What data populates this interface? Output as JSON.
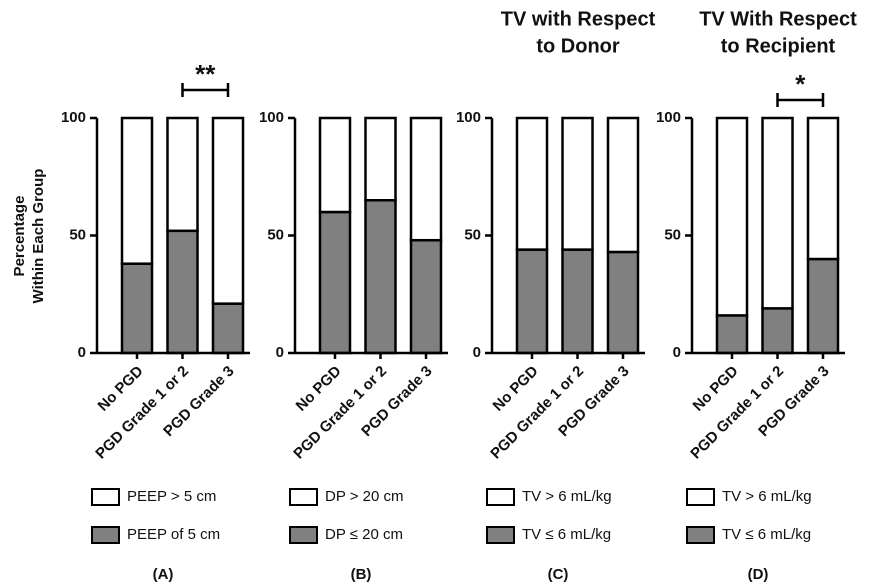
{
  "chart_data": [
    {
      "type": "stacked_bar",
      "y_label": [
        "Percentage",
        "Within Each Group"
      ],
      "panel_label": "(A)",
      "categories": [
        "No PGD",
        "PGD Grade 1 or 2",
        "PGD Grade 3"
      ],
      "series": [
        {
          "name": "PEEP > 5 cm",
          "color": "#ffffff",
          "values": [
            62,
            48,
            79
          ]
        },
        {
          "name": "PEEP of 5 cm",
          "color": "#808080",
          "values": [
            38,
            52,
            21
          ]
        }
      ],
      "ylim": [
        0,
        100
      ],
      "yticks": [
        0,
        50,
        100
      ],
      "annotations": [
        {
          "text": "**",
          "between": [
            1,
            2
          ]
        }
      ]
    },
    {
      "type": "stacked_bar",
      "panel_label": "(B)",
      "categories": [
        "No PGD",
        "PGD Grade 1 or 2",
        "PGD Grade 3"
      ],
      "series": [
        {
          "name": "DP  > 20 cm",
          "color": "#ffffff",
          "values": [
            40,
            35,
            52
          ]
        },
        {
          "name": "DP ≤ 20 cm",
          "color": "#808080",
          "values": [
            60,
            65,
            48
          ]
        }
      ],
      "ylim": [
        0,
        100
      ],
      "yticks": [
        0,
        50,
        100
      ]
    },
    {
      "type": "stacked_bar",
      "title": [
        "TV with Respect",
        "to Donor"
      ],
      "panel_label": "(C)",
      "categories": [
        "No PGD",
        "PGD Grade 1 or 2",
        "PGD Grade 3"
      ],
      "series": [
        {
          "name": "TV  > 6 mL/kg",
          "color": "#ffffff",
          "values": [
            56,
            56,
            57
          ]
        },
        {
          "name": "TV ≤ 6 mL/kg",
          "color": "#808080",
          "values": [
            44,
            44,
            43
          ]
        }
      ],
      "ylim": [
        0,
        100
      ],
      "yticks": [
        0,
        50,
        100
      ]
    },
    {
      "type": "stacked_bar",
      "title": [
        "TV With Respect",
        "to Recipient"
      ],
      "panel_label": "(D)",
      "categories": [
        "No PGD",
        "PGD Grade 1 or 2",
        "PGD Grade 3"
      ],
      "series": [
        {
          "name": "TV  > 6 mL/kg",
          "color": "#ffffff",
          "values": [
            84,
            81,
            60
          ]
        },
        {
          "name": "TV ≤ 6 mL/kg",
          "color": "#808080",
          "values": [
            16,
            19,
            40
          ]
        }
      ],
      "ylim": [
        0,
        100
      ],
      "yticks": [
        0,
        50,
        100
      ],
      "annotations": [
        {
          "text": "*",
          "between": [
            1,
            2
          ]
        }
      ]
    }
  ]
}
